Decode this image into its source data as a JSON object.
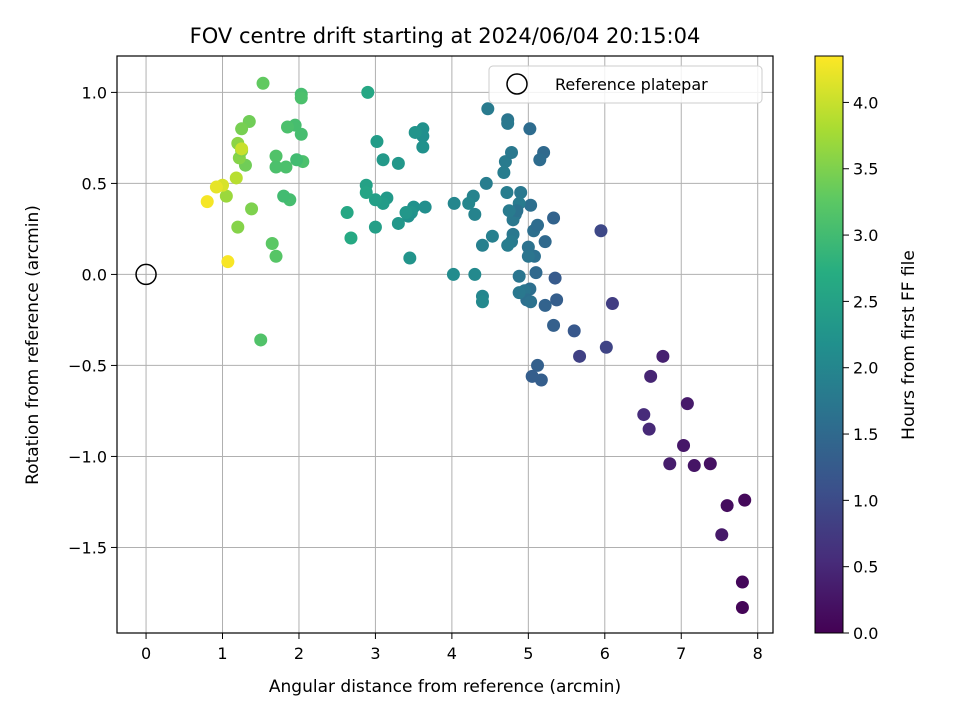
{
  "chart_data": {
    "type": "scatter",
    "title": "FOV centre drift starting at 2024/06/04 20:15:04",
    "xlabel": "Angular distance from reference (arcmin)",
    "ylabel": "Rotation from reference (arcmin)",
    "xlim": [
      -0.38,
      8.2
    ],
    "ylim": [
      -1.97,
      1.2
    ],
    "xticks": [
      0,
      1,
      2,
      3,
      4,
      5,
      6,
      7,
      8
    ],
    "xtick_labels": [
      "0",
      "1",
      "2",
      "3",
      "4",
      "5",
      "6",
      "7",
      "8"
    ],
    "yticks": [
      -1.5,
      -1.0,
      -0.5,
      0.0,
      0.5,
      1.0
    ],
    "ytick_labels": [
      "−1.5",
      "−1.0",
      "−0.5",
      "0.0",
      "0.5",
      "1.0"
    ],
    "grid": true,
    "legend": {
      "position": "top-right",
      "entries": [
        {
          "label": "Reference platepar",
          "marker": "hollow-circle"
        }
      ]
    },
    "reference_point": {
      "x": 0,
      "y": 0,
      "label": "Reference platepar"
    },
    "colorbar": {
      "label": "Hours from first FF file",
      "colormap": "viridis",
      "range": [
        0.0,
        4.35
      ],
      "ticks": [
        0.0,
        0.5,
        1.0,
        1.5,
        2.0,
        2.5,
        3.0,
        3.5,
        4.0
      ],
      "tick_labels": [
        "0.0",
        "0.5",
        "1.0",
        "1.5",
        "2.0",
        "2.5",
        "3.0",
        "3.5",
        "4.0"
      ]
    },
    "series": [
      {
        "points": [
          [
            7.8,
            -1.83,
            0.05
          ],
          [
            7.8,
            -1.69,
            0.08
          ],
          [
            7.83,
            -1.24,
            0.1
          ],
          [
            7.6,
            -1.27,
            0.15
          ],
          [
            7.53,
            -1.43,
            0.3
          ],
          [
            7.38,
            -1.04,
            0.2
          ],
          [
            7.17,
            -1.05,
            0.25
          ],
          [
            7.03,
            -0.94,
            0.28
          ],
          [
            6.85,
            -1.04,
            0.35
          ],
          [
            7.08,
            -0.71,
            0.32
          ],
          [
            6.76,
            -0.45,
            0.4
          ],
          [
            6.6,
            -0.56,
            0.45
          ],
          [
            6.58,
            -0.85,
            0.5
          ],
          [
            6.51,
            -0.77,
            0.55
          ],
          [
            6.02,
            -0.4,
            0.9
          ],
          [
            5.67,
            -0.45,
            0.85
          ],
          [
            5.95,
            0.24,
            0.95
          ],
          [
            6.1,
            -0.16,
            0.8
          ],
          [
            5.6,
            -0.31,
            1.2
          ],
          [
            5.35,
            -0.02,
            1.25
          ],
          [
            5.37,
            -0.14,
            1.3
          ],
          [
            5.33,
            -0.28,
            1.35
          ],
          [
            5.22,
            -0.17,
            1.4
          ],
          [
            5.17,
            -0.58,
            1.3
          ],
          [
            5.12,
            -0.5,
            1.35
          ],
          [
            5.05,
            -0.56,
            1.3
          ],
          [
            5.33,
            0.31,
            1.4
          ],
          [
            5.22,
            0.18,
            1.5
          ],
          [
            5.2,
            0.67,
            1.5
          ],
          [
            5.15,
            0.63,
            1.55
          ],
          [
            5.1,
            0.01,
            1.5
          ],
          [
            5.02,
            0.8,
            1.55
          ],
          [
            5.03,
            0.38,
            1.6
          ],
          [
            5.07,
            0.24,
            1.6
          ],
          [
            5.12,
            0.27,
            1.55
          ],
          [
            5.08,
            0.1,
            1.62
          ],
          [
            5.0,
            0.15,
            1.65
          ],
          [
            5.0,
            0.1,
            1.7
          ],
          [
            5.02,
            -0.08,
            1.6
          ],
          [
            4.95,
            -0.09,
            1.7
          ],
          [
            4.98,
            -0.14,
            1.6
          ],
          [
            5.03,
            -0.15,
            1.65
          ],
          [
            4.88,
            -0.01,
            1.7
          ],
          [
            4.88,
            -0.1,
            1.75
          ],
          [
            4.9,
            0.45,
            1.75
          ],
          [
            4.88,
            0.39,
            1.8
          ],
          [
            4.83,
            0.33,
            1.7
          ],
          [
            4.8,
            0.22,
            1.75
          ],
          [
            4.78,
            0.18,
            1.8
          ],
          [
            4.73,
            0.16,
            1.85
          ],
          [
            4.8,
            0.3,
            1.75
          ],
          [
            4.85,
            0.35,
            1.65
          ],
          [
            4.75,
            0.35,
            1.8
          ],
          [
            4.72,
            0.45,
            1.85
          ],
          [
            4.7,
            0.62,
            1.8
          ],
          [
            4.68,
            0.56,
            1.85
          ],
          [
            4.78,
            0.67,
            1.75
          ],
          [
            4.73,
            0.85,
            1.7
          ],
          [
            4.73,
            0.83,
            1.75
          ],
          [
            4.47,
            0.91,
            1.8
          ],
          [
            4.45,
            0.5,
            1.85
          ],
          [
            4.53,
            0.21,
            1.9
          ],
          [
            4.4,
            0.16,
            1.9
          ],
          [
            4.28,
            0.43,
            1.95
          ],
          [
            4.22,
            0.39,
            2.0
          ],
          [
            4.3,
            0.33,
            1.95
          ],
          [
            4.03,
            0.39,
            2.0
          ],
          [
            4.3,
            0.0,
            2.05
          ],
          [
            4.4,
            -0.12,
            2.0
          ],
          [
            4.4,
            -0.15,
            2.05
          ],
          [
            4.02,
            0.0,
            2.1
          ],
          [
            3.65,
            0.37,
            2.15
          ],
          [
            3.62,
            0.8,
            2.2
          ],
          [
            3.62,
            0.76,
            2.15
          ],
          [
            3.62,
            0.7,
            2.2
          ],
          [
            3.52,
            0.78,
            2.25
          ],
          [
            3.5,
            0.37,
            2.2
          ],
          [
            3.47,
            0.34,
            2.25
          ],
          [
            3.43,
            0.32,
            2.2
          ],
          [
            3.4,
            0.34,
            2.3
          ],
          [
            3.45,
            0.09,
            2.25
          ],
          [
            3.3,
            0.61,
            2.3
          ],
          [
            3.3,
            0.28,
            2.3
          ],
          [
            3.15,
            0.42,
            2.35
          ],
          [
            3.1,
            0.39,
            2.4
          ],
          [
            3.1,
            0.63,
            2.35
          ],
          [
            3.02,
            0.73,
            2.4
          ],
          [
            3.0,
            0.26,
            2.45
          ],
          [
            3.0,
            0.41,
            2.45
          ],
          [
            2.88,
            0.49,
            2.5
          ],
          [
            2.88,
            0.45,
            2.55
          ],
          [
            2.9,
            1.0,
            2.6
          ],
          [
            2.63,
            0.34,
            2.6
          ],
          [
            2.68,
            0.2,
            2.65
          ],
          [
            2.03,
            0.99,
            3.05
          ],
          [
            2.03,
            0.97,
            3.1
          ],
          [
            2.03,
            0.77,
            3.05
          ],
          [
            2.05,
            0.62,
            3.1
          ],
          [
            1.97,
            0.63,
            3.0
          ],
          [
            1.95,
            0.82,
            3.05
          ],
          [
            1.85,
            0.81,
            3.1
          ],
          [
            1.83,
            0.59,
            3.1
          ],
          [
            1.88,
            0.41,
            3.05
          ],
          [
            1.8,
            0.43,
            3.0
          ],
          [
            1.7,
            0.65,
            3.15
          ],
          [
            1.7,
            0.59,
            3.1
          ],
          [
            1.7,
            0.1,
            3.2
          ],
          [
            1.65,
            0.17,
            3.25
          ],
          [
            1.5,
            -0.36,
            3.15
          ],
          [
            1.53,
            1.05,
            3.3
          ],
          [
            1.35,
            0.84,
            3.4
          ],
          [
            1.25,
            0.8,
            3.45
          ],
          [
            1.3,
            0.6,
            3.4
          ],
          [
            1.38,
            0.36,
            3.5
          ],
          [
            1.22,
            0.64,
            3.55
          ],
          [
            1.2,
            0.72,
            3.6
          ],
          [
            1.25,
            0.68,
            3.5
          ],
          [
            1.2,
            0.26,
            3.55
          ],
          [
            1.05,
            0.43,
            3.7
          ],
          [
            1.18,
            0.53,
            3.9
          ],
          [
            1.25,
            0.69,
            4.0
          ],
          [
            1.0,
            0.49,
            4.1
          ],
          [
            0.92,
            0.48,
            4.2
          ],
          [
            0.8,
            0.4,
            4.3
          ],
          [
            1.07,
            0.07,
            4.32
          ]
        ]
      }
    ]
  }
}
